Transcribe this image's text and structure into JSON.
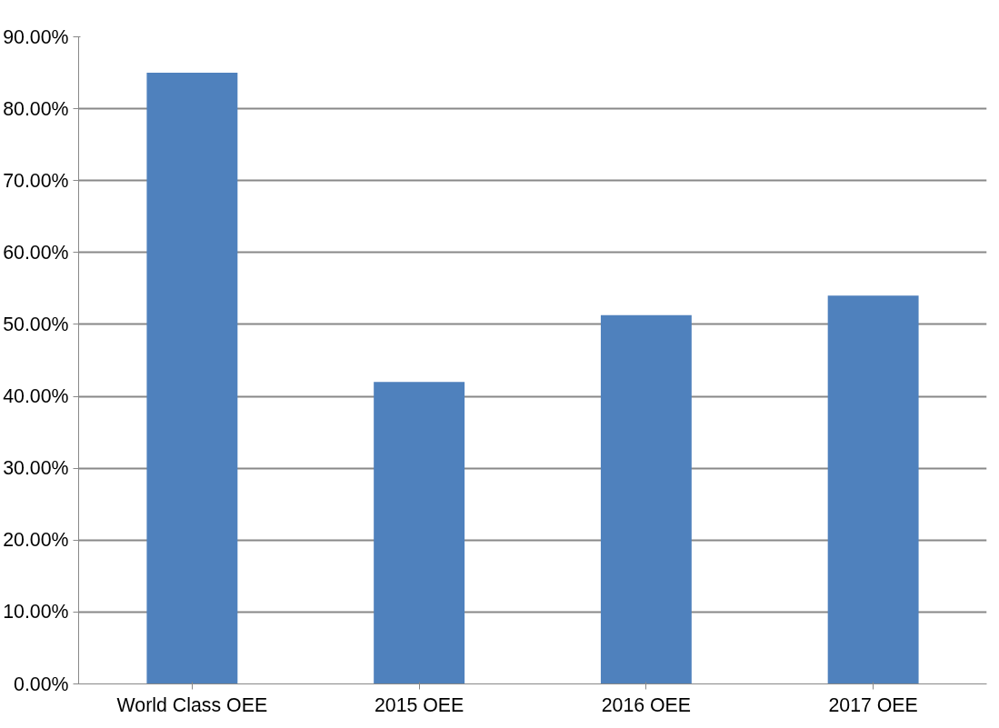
{
  "chart_data": {
    "type": "bar",
    "categories": [
      "World Class OEE",
      "2015 OEE",
      "2016 OEE",
      "2017 OEE"
    ],
    "values": [
      85,
      42,
      51.3,
      54
    ],
    "color": "#4f81bd",
    "ylim": [
      0,
      90
    ],
    "yticks": [
      {
        "value": 0,
        "label": "0.00%"
      },
      {
        "value": 10,
        "label": "10.00%"
      },
      {
        "value": 20,
        "label": "20.00%"
      },
      {
        "value": 30,
        "label": "30.00%"
      },
      {
        "value": 40,
        "label": "40.00%"
      },
      {
        "value": 50,
        "label": "50.00%"
      },
      {
        "value": 60,
        "label": "60.00%"
      },
      {
        "value": 70,
        "label": "70.00%"
      },
      {
        "value": 80,
        "label": "80.00%"
      },
      {
        "value": 90,
        "label": "90.00%"
      }
    ],
    "grid": "y"
  }
}
